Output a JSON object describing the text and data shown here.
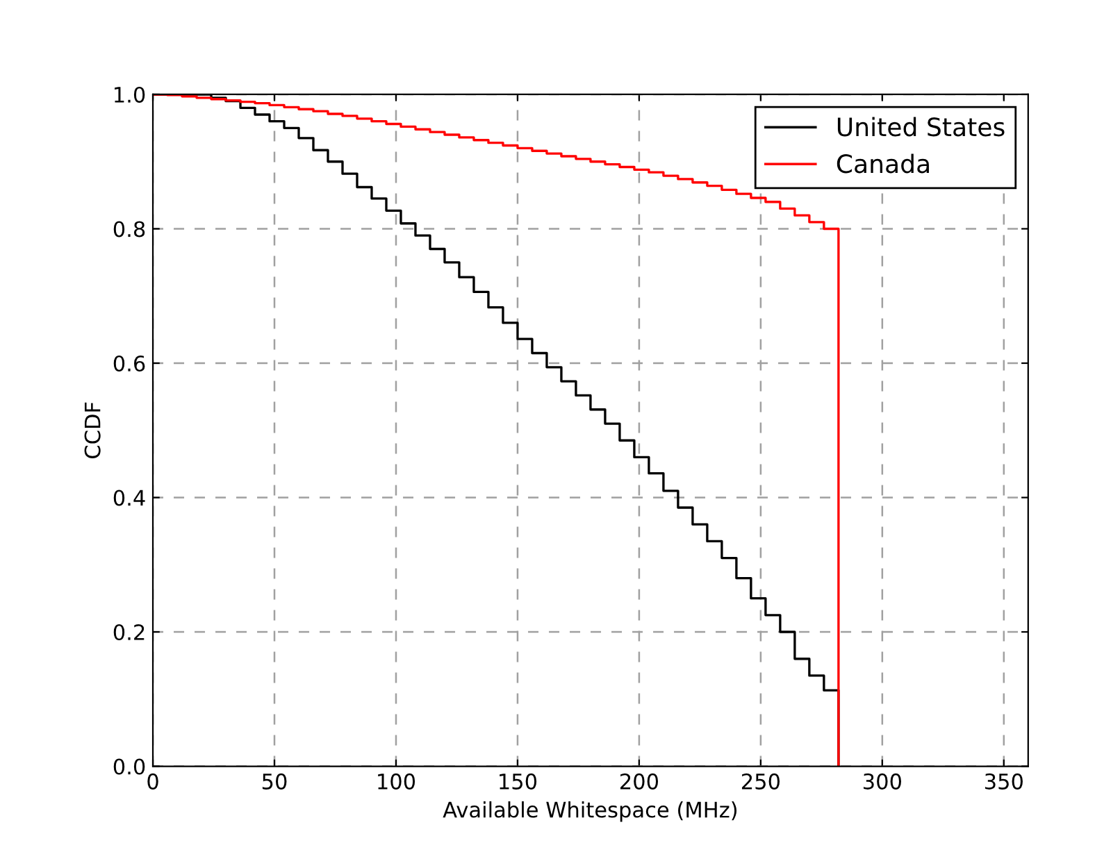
{
  "chart_data": {
    "type": "step",
    "xlabel": "Available Whitespace (MHz)",
    "ylabel": "CCDF",
    "xlim": [
      0,
      360
    ],
    "ylim": [
      0,
      1.0
    ],
    "xticks": [
      0,
      50,
      100,
      150,
      200,
      250,
      300,
      350
    ],
    "yticks": [
      {
        "value": 0,
        "label": "0.0"
      },
      0.2,
      0.4,
      0.6,
      0.8,
      {
        "value": 1,
        "label": "1.0"
      }
    ],
    "grid": true,
    "legend": "top right",
    "series": [
      {
        "name": "United States",
        "color": "#000000",
        "x": [
          0,
          6,
          12,
          18,
          24,
          30,
          36,
          42,
          48,
          54,
          60,
          66,
          72,
          78,
          84,
          90,
          96,
          102,
          108,
          114,
          120,
          126,
          132,
          138,
          144,
          150,
          156,
          162,
          168,
          174,
          180,
          186,
          192,
          198,
          204,
          210,
          216,
          222,
          228,
          234,
          240,
          246,
          252,
          258,
          264,
          270,
          276,
          282
        ],
        "values": [
          1.0,
          1.0,
          1.0,
          1.0,
          0.995,
          0.99,
          0.98,
          0.97,
          0.96,
          0.95,
          0.935,
          0.917,
          0.9,
          0.882,
          0.862,
          0.845,
          0.827,
          0.808,
          0.79,
          0.77,
          0.75,
          0.728,
          0.706,
          0.683,
          0.66,
          0.636,
          0.615,
          0.594,
          0.573,
          0.552,
          0.531,
          0.51,
          0.485,
          0.46,
          0.436,
          0.41,
          0.385,
          0.36,
          0.335,
          0.31,
          0.28,
          0.25,
          0.225,
          0.2,
          0.16,
          0.135,
          0.113,
          0.0
        ]
      },
      {
        "name": "Canada",
        "color": "#ff0000",
        "x": [
          0,
          6,
          12,
          18,
          24,
          30,
          36,
          42,
          48,
          54,
          60,
          66,
          72,
          78,
          84,
          90,
          96,
          102,
          108,
          114,
          120,
          126,
          132,
          138,
          144,
          150,
          156,
          162,
          168,
          174,
          180,
          186,
          192,
          198,
          204,
          210,
          216,
          222,
          228,
          234,
          240,
          246,
          252,
          258,
          264,
          270,
          276,
          282
        ],
        "values": [
          1.0,
          0.999,
          0.997,
          0.995,
          0.993,
          0.991,
          0.989,
          0.987,
          0.984,
          0.981,
          0.978,
          0.975,
          0.971,
          0.968,
          0.964,
          0.96,
          0.956,
          0.952,
          0.948,
          0.944,
          0.94,
          0.936,
          0.932,
          0.928,
          0.924,
          0.92,
          0.916,
          0.912,
          0.908,
          0.904,
          0.9,
          0.896,
          0.892,
          0.888,
          0.884,
          0.879,
          0.874,
          0.869,
          0.864,
          0.858,
          0.852,
          0.846,
          0.84,
          0.83,
          0.82,
          0.81,
          0.8,
          0.0
        ]
      }
    ]
  }
}
